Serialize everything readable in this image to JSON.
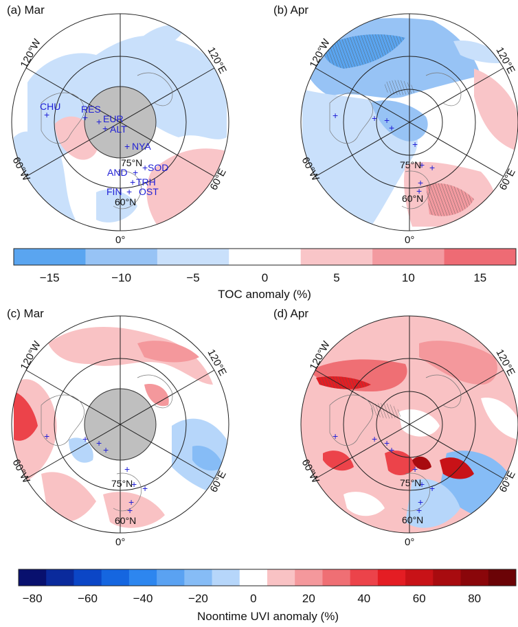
{
  "panels": [
    {
      "id": "a",
      "title": "(a) Mar",
      "masked_pole": true,
      "lon_labels": {
        "left_upper": "120°W",
        "right_upper": "120°E",
        "left_lower": "60°W",
        "right_lower": "60°E",
        "bottom": "0°"
      },
      "lat_labels": [
        "75°N",
        "60°N"
      ],
      "stations": [
        "CHU",
        "RES",
        "EUR",
        "ALT",
        "NYA",
        "AND",
        "SOD",
        "TRH",
        "FIN",
        "OST"
      ],
      "blobs": [
        {
          "c": "#c9e0fb",
          "pts": [
            [
              0.0,
              0.0
            ],
            [
              1.0,
              0.0
            ],
            [
              1.0,
              1.0
            ],
            [
              0.0,
              1.0
            ]
          ]
        }
      ]
    },
    {
      "id": "b",
      "title": "(b) Apr",
      "masked_pole": false,
      "lon_labels": {
        "left_upper": "120°W",
        "right_upper": "120°E",
        "left_lower": "60°W",
        "right_lower": "60°E",
        "bottom": "0°"
      },
      "lat_labels": [
        "75°N",
        "60°N"
      ]
    },
    {
      "id": "c",
      "title": "(c) Mar",
      "masked_pole": true,
      "lon_labels": {
        "left_upper": "120°W",
        "right_upper": "120°E",
        "left_lower": "60°W",
        "right_lower": "60°E",
        "bottom": "0°"
      },
      "lat_labels": [
        "75°N",
        "60°N"
      ]
    },
    {
      "id": "d",
      "title": "(d) Apr",
      "masked_pole": false,
      "lon_labels": {
        "left_upper": "120°W",
        "right_upper": "120°E",
        "left_lower": "60°W",
        "right_lower": "60°E",
        "bottom": "0°"
      },
      "lat_labels": [
        "75°N",
        "60°N"
      ]
    }
  ],
  "colorbars": [
    {
      "title": "TOC anomaly (%)",
      "colors": [
        "#5aa5f0",
        "#97c3f5",
        "#c9e0fb",
        "#ffffff",
        "#f9c5c8",
        "#f39aa0",
        "#ee6b74"
      ],
      "ticks": [
        "−15",
        "−10",
        "−5",
        "0",
        "5",
        "10",
        "15"
      ]
    },
    {
      "title": "Noontime UVI anomaly (%)",
      "colors": [
        "#08106e",
        "#0a2a9c",
        "#0b46c6",
        "#1566e0",
        "#2d86ef",
        "#5aa2f2",
        "#86bcf6",
        "#b6d6fa",
        "#ffffff",
        "#f9c2c4",
        "#f4989c",
        "#ef6f74",
        "#ec434a",
        "#e41d23",
        "#c81217",
        "#a80b0f",
        "#8a060a",
        "#6b0306"
      ],
      "ticks": [
        "−80",
        "−60",
        "−40",
        "−20",
        "0",
        "20",
        "40",
        "60",
        "80"
      ]
    }
  ]
}
